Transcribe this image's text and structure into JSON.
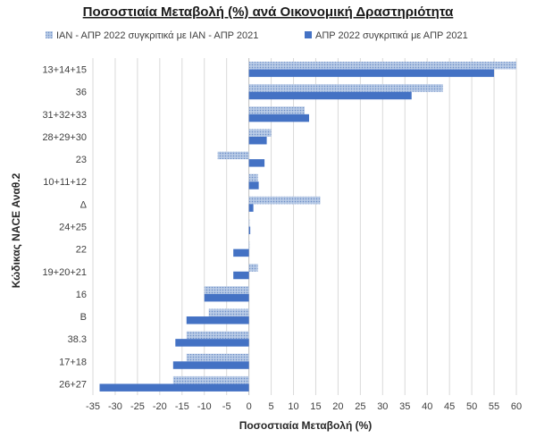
{
  "chart_data": {
    "type": "bar",
    "orientation": "horizontal",
    "title": "Ποσοστιαία Μεταβολή (%) ανά Οικονομική Δραστηριότητα",
    "xlabel": "Ποσοστιαία Μεταβολή (%)",
    "ylabel": "Κώδικας NACE Αναθ.2",
    "xlim": [
      -35,
      60
    ],
    "xticks": [
      -35,
      -30,
      -25,
      -20,
      -15,
      -10,
      -5,
      0,
      5,
      10,
      15,
      20,
      25,
      30,
      35,
      40,
      45,
      50,
      55,
      60
    ],
    "grid": true,
    "legend_position": "top",
    "categories": [
      "13+14+15",
      "36",
      "31+32+33",
      "28+29+30",
      "23",
      "10+11+12",
      "Δ",
      "24+25",
      "22",
      "19+20+21",
      "16",
      "Β",
      "38.3",
      "17+18",
      "26+27"
    ],
    "series": [
      {
        "name": "ΙΑΝ - ΑΠΡ 2022 συγκριτικά με ΙΑΝ - ΑΠΡ 2021",
        "color": "#a9bfe0",
        "pattern": "dotted",
        "values": [
          60,
          43.5,
          12.5,
          5,
          -7,
          2,
          16,
          0,
          0,
          2,
          -10,
          -9,
          -14,
          -14,
          -17
        ]
      },
      {
        "name": "ΑΠΡ 2022 συγκριτικά με ΑΠΡ 2021",
        "color": "#4472c4",
        "pattern": "solid",
        "values": [
          55,
          36.5,
          13.5,
          4,
          3.5,
          2.2,
          1,
          0.3,
          -3.5,
          -3.5,
          -10,
          -14,
          -16.5,
          -17,
          -33.5
        ]
      }
    ]
  }
}
